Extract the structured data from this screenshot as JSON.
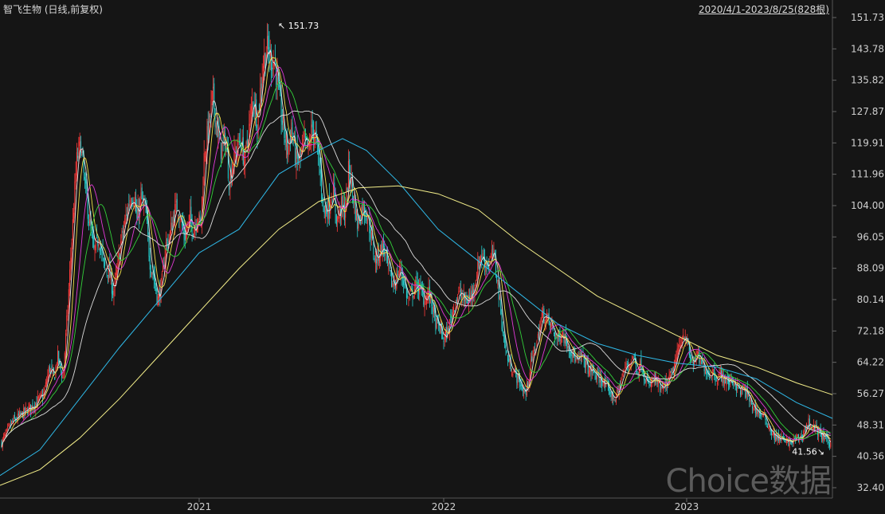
{
  "header": {
    "title": "智飞生物 (日线,前复权)",
    "range": "2020/4/1-2023/8/25(828根)"
  },
  "watermark": "Choice数据",
  "colors": {
    "background": "#151515",
    "up": "#ff3b3b",
    "down": "#27d3d3",
    "ma5": "#e6e6e6",
    "ma10": "#f2e04a",
    "ma20": "#e23ad8",
    "ma30": "#33d13a",
    "ma60": "#dcdcdc",
    "ma120": "#2fb9e8",
    "ma250": "#f4ef8a",
    "grid": "#333333"
  },
  "chart_data": {
    "type": "candlestick",
    "period": "daily",
    "adjustment": "前复权",
    "bars": 828,
    "y_ticks": [
      "151.73",
      "143.78",
      "135.82",
      "127.87",
      "119.91",
      "111.96",
      "104.00",
      "96.05",
      "88.09",
      "80.14",
      "72.18",
      "64.22",
      "56.27",
      "48.31",
      "40.36",
      "32.40"
    ],
    "ylim": [
      32.4,
      151.73
    ],
    "x_ticks": [
      "2021",
      "2022",
      "2023"
    ],
    "annotations": [
      {
        "label": "↖ 151.73",
        "value": 151.73,
        "type": "high"
      },
      {
        "label": "41.56↘",
        "value": 41.56,
        "type": "low"
      }
    ],
    "price_path": [
      [
        0,
        43
      ],
      [
        15,
        49
      ],
      [
        40,
        53
      ],
      [
        55,
        56
      ],
      [
        62,
        63
      ],
      [
        68,
        60
      ],
      [
        72,
        66
      ],
      [
        79,
        60
      ],
      [
        85,
        78
      ],
      [
        90,
        95
      ],
      [
        96,
        115
      ],
      [
        101,
        120
      ],
      [
        106,
        110
      ],
      [
        112,
        100
      ],
      [
        118,
        92
      ],
      [
        124,
        96
      ],
      [
        131,
        88
      ],
      [
        136,
        88
      ],
      [
        142,
        82
      ],
      [
        147,
        87
      ],
      [
        152,
        95
      ],
      [
        158,
        101
      ],
      [
        163,
        106
      ],
      [
        168,
        107
      ],
      [
        172,
        100
      ],
      [
        177,
        106
      ],
      [
        183,
        102
      ],
      [
        188,
        90
      ],
      [
        193,
        86
      ],
      [
        198,
        80
      ],
      [
        203,
        84
      ],
      [
        208,
        94
      ],
      [
        213,
        96
      ],
      [
        218,
        102
      ],
      [
        223,
        104
      ],
      [
        228,
        99
      ],
      [
        233,
        96
      ],
      [
        238,
        101
      ],
      [
        243,
        98
      ],
      [
        248,
        102
      ],
      [
        252,
        98
      ],
      [
        256,
        116
      ],
      [
        262,
        124
      ],
      [
        267,
        132
      ],
      [
        272,
        124
      ],
      [
        277,
        118
      ],
      [
        283,
        121
      ],
      [
        288,
        110
      ],
      [
        292,
        115
      ],
      [
        297,
        118
      ],
      [
        302,
        121
      ],
      [
        307,
        115
      ],
      [
        313,
        124
      ],
      [
        318,
        132
      ],
      [
        323,
        125
      ],
      [
        330,
        140
      ],
      [
        335,
        144
      ],
      [
        340,
        141
      ],
      [
        345,
        141
      ],
      [
        351,
        130
      ],
      [
        356,
        123
      ],
      [
        361,
        118
      ],
      [
        366,
        124
      ],
      [
        372,
        115
      ],
      [
        377,
        116
      ],
      [
        382,
        120
      ],
      [
        387,
        118
      ],
      [
        392,
        124
      ],
      [
        397,
        120
      ],
      [
        402,
        112
      ],
      [
        407,
        102
      ],
      [
        413,
        104
      ],
      [
        418,
        108
      ],
      [
        423,
        100
      ],
      [
        428,
        104
      ],
      [
        433,
        102
      ],
      [
        438,
        114
      ],
      [
        443,
        107
      ],
      [
        449,
        99
      ],
      [
        455,
        104
      ],
      [
        461,
        102
      ],
      [
        466,
        96
      ],
      [
        471,
        90
      ],
      [
        476,
        92
      ],
      [
        481,
        94
      ],
      [
        486,
        89
      ],
      [
        492,
        84
      ],
      [
        497,
        85
      ],
      [
        502,
        88
      ],
      [
        507,
        85
      ],
      [
        512,
        80
      ],
      [
        518,
        82
      ],
      [
        523,
        84
      ],
      [
        527,
        83
      ],
      [
        533,
        80
      ],
      [
        538,
        82
      ],
      [
        543,
        78
      ],
      [
        547,
        74
      ],
      [
        552,
        73
      ],
      [
        557,
        70
      ],
      [
        562,
        72
      ],
      [
        567,
        76
      ],
      [
        572,
        80
      ],
      [
        577,
        82
      ],
      [
        582,
        80
      ],
      [
        588,
        80
      ],
      [
        593,
        82
      ],
      [
        598,
        86
      ],
      [
        603,
        92
      ],
      [
        608,
        90
      ],
      [
        614,
        89
      ],
      [
        619,
        92
      ],
      [
        624,
        86
      ],
      [
        629,
        76
      ],
      [
        634,
        68
      ],
      [
        639,
        64
      ],
      [
        645,
        62
      ],
      [
        650,
        60
      ],
      [
        655,
        58
      ],
      [
        660,
        56
      ],
      [
        665,
        62
      ],
      [
        670,
        67
      ],
      [
        675,
        70
      ],
      [
        680,
        76
      ],
      [
        685,
        76
      ],
      [
        690,
        74
      ],
      [
        695,
        72
      ],
      [
        700,
        70
      ],
      [
        705,
        72
      ],
      [
        710,
        70
      ],
      [
        715,
        68
      ],
      [
        720,
        66
      ],
      [
        725,
        64
      ],
      [
        730,
        66
      ],
      [
        735,
        64
      ],
      [
        740,
        62
      ],
      [
        745,
        62
      ],
      [
        750,
        60
      ],
      [
        755,
        60
      ],
      [
        760,
        58
      ],
      [
        765,
        57
      ],
      [
        770,
        55
      ],
      [
        775,
        56
      ],
      [
        780,
        60
      ],
      [
        785,
        63
      ],
      [
        790,
        64
      ],
      [
        795,
        66
      ],
      [
        800,
        62
      ],
      [
        805,
        64
      ],
      [
        810,
        60
      ],
      [
        815,
        58
      ],
      [
        820,
        60
      ],
      [
        825,
        59
      ],
      [
        830,
        57
      ],
      [
        835,
        58
      ],
      [
        840,
        60
      ],
      [
        845,
        62
      ],
      [
        850,
        66
      ],
      [
        855,
        70
      ],
      [
        860,
        72
      ],
      [
        865,
        66
      ],
      [
        870,
        64
      ],
      [
        875,
        66
      ],
      [
        880,
        64
      ],
      [
        885,
        63
      ],
      [
        890,
        61
      ],
      [
        895,
        62
      ],
      [
        900,
        60
      ],
      [
        905,
        61
      ],
      [
        910,
        60
      ],
      [
        915,
        59
      ],
      [
        920,
        60
      ],
      [
        925,
        58
      ],
      [
        930,
        57
      ],
      [
        935,
        57
      ],
      [
        940,
        55
      ],
      [
        945,
        53
      ],
      [
        950,
        52
      ],
      [
        955,
        51
      ],
      [
        960,
        50
      ],
      [
        965,
        48
      ],
      [
        970,
        46
      ],
      [
        975,
        45
      ],
      [
        980,
        45
      ],
      [
        985,
        44
      ],
      [
        990,
        44
      ],
      [
        995,
        44
      ],
      [
        1000,
        45
      ],
      [
        1005,
        45
      ],
      [
        1010,
        47
      ],
      [
        1015,
        49
      ],
      [
        1020,
        48
      ],
      [
        1025,
        47
      ],
      [
        1030,
        46
      ],
      [
        1035,
        45
      ],
      [
        1040,
        44
      ],
      [
        1045,
        43
      ]
    ],
    "ma120_path": [
      [
        0,
        35.5
      ],
      [
        50,
        42
      ],
      [
        100,
        55
      ],
      [
        150,
        68
      ],
      [
        200,
        80
      ],
      [
        250,
        92
      ],
      [
        300,
        98
      ],
      [
        350,
        112
      ],
      [
        400,
        118
      ],
      [
        430,
        121
      ],
      [
        460,
        118
      ],
      [
        500,
        110
      ],
      [
        550,
        98
      ],
      [
        600,
        90
      ],
      [
        650,
        82
      ],
      [
        700,
        74
      ],
      [
        750,
        69
      ],
      [
        800,
        66
      ],
      [
        850,
        64
      ],
      [
        900,
        63
      ],
      [
        950,
        60
      ],
      [
        1000,
        54
      ],
      [
        1045,
        50
      ]
    ],
    "ma250_path": [
      [
        0,
        33
      ],
      [
        50,
        37
      ],
      [
        100,
        45
      ],
      [
        150,
        55
      ],
      [
        200,
        66
      ],
      [
        250,
        77
      ],
      [
        300,
        88
      ],
      [
        350,
        98
      ],
      [
        400,
        105
      ],
      [
        450,
        108.5
      ],
      [
        500,
        109
      ],
      [
        550,
        107
      ],
      [
        600,
        103
      ],
      [
        650,
        95
      ],
      [
        700,
        88
      ],
      [
        750,
        81
      ],
      [
        800,
        76
      ],
      [
        850,
        71
      ],
      [
        900,
        66
      ],
      [
        950,
        63
      ],
      [
        1000,
        59
      ],
      [
        1045,
        56
      ]
    ]
  }
}
